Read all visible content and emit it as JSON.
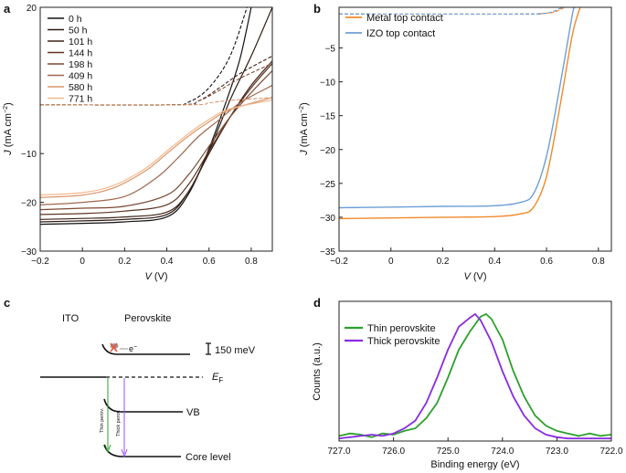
{
  "panels": {
    "a": {
      "label": "a",
      "chart_data": {
        "type": "line",
        "xlabel_var": "V",
        "xlabel_unit": " (V)",
        "ylabel_var": "J",
        "ylabel_unit": " (mA cm",
        "ylabel_sup": "−2",
        "ylabel_close": ")",
        "xlim": [
          -0.2,
          0.9
        ],
        "ylim": [
          -30,
          20
        ],
        "xticks": [
          -0.2,
          0.0,
          0.2,
          0.4,
          0.6,
          0.8
        ],
        "xtick_labels": [
          "−0.2",
          "0",
          "0.2",
          "0.4",
          "0.6",
          "0.8"
        ],
        "yticks": [
          -30,
          -20,
          -10,
          20
        ],
        "ytick_labels": [
          "−30",
          "−20",
          "−10",
          "20"
        ],
        "series": [
          {
            "name": "0 h",
            "color": "#111111",
            "jsc": -24.5,
            "pts": [
              [
                -0.2,
                -24.5
              ],
              [
                0.0,
                -24.3
              ],
              [
                0.2,
                -24.0
              ],
              [
                0.4,
                -23.0
              ],
              [
                0.5,
                -18.5
              ],
              [
                0.6,
                -9.0
              ],
              [
                0.7,
                3.0
              ],
              [
                0.75,
                10.0
              ],
              [
                0.8,
                20.0
              ]
            ]
          },
          {
            "name": "50 h",
            "color": "#2a1a12",
            "jsc": -24.0,
            "pts": [
              [
                -0.2,
                -24.0
              ],
              [
                0.0,
                -23.8
              ],
              [
                0.2,
                -23.5
              ],
              [
                0.4,
                -22.5
              ],
              [
                0.5,
                -18.0
              ],
              [
                0.6,
                -9.5
              ],
              [
                0.7,
                1.0
              ],
              [
                0.8,
                10.0
              ],
              [
                0.9,
                20.0
              ]
            ]
          },
          {
            "name": "101 h",
            "color": "#3f2418",
            "jsc": -23.5,
            "pts": [
              [
                -0.2,
                -23.5
              ],
              [
                0.0,
                -23.3
              ],
              [
                0.2,
                -23.0
              ],
              [
                0.4,
                -22.0
              ],
              [
                0.5,
                -18.0
              ],
              [
                0.6,
                -10.0
              ],
              [
                0.7,
                -2.5
              ],
              [
                0.8,
                4.0
              ],
              [
                0.9,
                9.0
              ]
            ]
          },
          {
            "name": "144 h",
            "color": "#5e3423",
            "jsc": -22.5,
            "pts": [
              [
                -0.2,
                -22.5
              ],
              [
                0.0,
                -22.3
              ],
              [
                0.2,
                -21.8
              ],
              [
                0.4,
                -20.5
              ],
              [
                0.5,
                -16.5
              ],
              [
                0.6,
                -9.5
              ],
              [
                0.7,
                -2.5
              ],
              [
                0.8,
                3.5
              ],
              [
                0.9,
                8.5
              ]
            ]
          },
          {
            "name": "198 h",
            "color": "#7d4a35",
            "jsc": -21.5,
            "pts": [
              [
                -0.2,
                -21.5
              ],
              [
                0.0,
                -21.2
              ],
              [
                0.2,
                -20.8
              ],
              [
                0.4,
                -18.5
              ],
              [
                0.5,
                -14.5
              ],
              [
                0.6,
                -8.5
              ],
              [
                0.7,
                -2.5
              ],
              [
                0.8,
                2.5
              ],
              [
                0.9,
                7.0
              ]
            ]
          },
          {
            "name": "409 h",
            "color": "#a0674e",
            "jsc": -20.5,
            "pts": [
              [
                -0.2,
                -20.5
              ],
              [
                0.0,
                -20.0
              ],
              [
                0.2,
                -18.8
              ],
              [
                0.35,
                -15.0
              ],
              [
                0.45,
                -11.0
              ],
              [
                0.55,
                -6.5
              ],
              [
                0.65,
                -3.0
              ],
              [
                0.75,
                0.5
              ],
              [
                0.9,
                4.0
              ]
            ]
          },
          {
            "name": "580 h",
            "color": "#d9956a",
            "jsc": -19.0,
            "pts": [
              [
                -0.2,
                -19.0
              ],
              [
                0.0,
                -18.5
              ],
              [
                0.15,
                -17.0
              ],
              [
                0.3,
                -13.5
              ],
              [
                0.4,
                -10.0
              ],
              [
                0.5,
                -6.5
              ],
              [
                0.6,
                -3.5
              ],
              [
                0.7,
                -1.0
              ],
              [
                0.9,
                1.5
              ]
            ]
          },
          {
            "name": "771 h",
            "color": "#f2b98e",
            "jsc": -18.5,
            "pts": [
              [
                -0.2,
                -18.5
              ],
              [
                0.0,
                -18.0
              ],
              [
                0.15,
                -16.5
              ],
              [
                0.3,
                -13.0
              ],
              [
                0.4,
                -9.5
              ],
              [
                0.5,
                -6.0
              ],
              [
                0.6,
                -3.0
              ],
              [
                0.7,
                -0.8
              ],
              [
                0.9,
                1.0
              ]
            ]
          }
        ],
        "dark_series": [
          {
            "color": "#111111",
            "pts": [
              [
                -0.2,
                0.0
              ],
              [
                0.4,
                0.0
              ],
              [
                0.5,
                0.5
              ],
              [
                0.6,
                3.5
              ],
              [
                0.7,
                10.0
              ],
              [
                0.78,
                20.0
              ]
            ]
          },
          {
            "color": "#3f2418",
            "pts": [
              [
                -0.2,
                0.0
              ],
              [
                0.45,
                0.0
              ],
              [
                0.55,
                0.8
              ],
              [
                0.65,
                3.5
              ],
              [
                0.75,
                6.5
              ],
              [
                0.9,
                10.0
              ]
            ]
          },
          {
            "color": "#7d4a35",
            "pts": [
              [
                -0.2,
                0.0
              ],
              [
                0.45,
                0.0
              ],
              [
                0.55,
                0.8
              ],
              [
                0.65,
                3.0
              ],
              [
                0.75,
                5.5
              ],
              [
                0.9,
                8.5
              ]
            ]
          },
          {
            "color": "#d9956a",
            "pts": [
              [
                -0.2,
                0.0
              ],
              [
                0.5,
                0.0
              ],
              [
                0.6,
                0.4
              ],
              [
                0.7,
                0.9
              ],
              [
                0.9,
                1.5
              ]
            ]
          }
        ]
      }
    },
    "b": {
      "label": "b",
      "chart_data": {
        "type": "line",
        "xlabel_var": "V",
        "xlabel_unit": " (V)",
        "ylabel_var": "J",
        "ylabel_unit": " (mA cm",
        "ylabel_sup": "−2",
        "ylabel_close": ")",
        "xlim": [
          -0.2,
          0.85
        ],
        "ylim": [
          -35,
          1
        ],
        "xticks": [
          -0.2,
          0.0,
          0.2,
          0.4,
          0.6,
          0.8
        ],
        "xtick_labels": [
          "−0.2",
          "0",
          "0.2",
          "0.4",
          "0.6",
          "0.8"
        ],
        "yticks": [
          -35,
          -30,
          -25,
          -20,
          -15,
          -10,
          -5
        ],
        "ytick_labels": [
          "−35",
          "−30",
          "−25",
          "−20",
          "−15",
          "−10",
          "−5"
        ],
        "series": [
          {
            "name": "Metal top contact",
            "color": "#f08a2c",
            "pts": [
              [
                -0.2,
                -30.2
              ],
              [
                0.0,
                -30.1
              ],
              [
                0.2,
                -30.0
              ],
              [
                0.4,
                -29.9
              ],
              [
                0.5,
                -29.5
              ],
              [
                0.55,
                -28.5
              ],
              [
                0.6,
                -24.0
              ],
              [
                0.65,
                -14.0
              ],
              [
                0.7,
                -3.0
              ],
              [
                0.73,
                1.0
              ]
            ]
          },
          {
            "name": "IZO top contact",
            "color": "#6d9fd6",
            "pts": [
              [
                -0.2,
                -28.6
              ],
              [
                0.0,
                -28.5
              ],
              [
                0.2,
                -28.4
              ],
              [
                0.4,
                -28.3
              ],
              [
                0.5,
                -27.8
              ],
              [
                0.55,
                -26.5
              ],
              [
                0.6,
                -21.0
              ],
              [
                0.65,
                -11.0
              ],
              [
                0.7,
                0.0
              ],
              [
                0.71,
                1.0
              ]
            ]
          }
        ],
        "dark_series": [
          {
            "color": "#f08a2c",
            "pts": [
              [
                -0.2,
                0.0
              ],
              [
                0.5,
                0.0
              ],
              [
                0.58,
                0.05
              ],
              [
                0.63,
                0.3
              ],
              [
                0.67,
                1.0
              ]
            ]
          },
          {
            "color": "#6d9fd6",
            "pts": [
              [
                -0.2,
                0.0
              ],
              [
                0.5,
                0.0
              ],
              [
                0.57,
                0.05
              ],
              [
                0.62,
                0.3
              ],
              [
                0.66,
                1.0
              ]
            ]
          }
        ]
      }
    },
    "c": {
      "label": "c",
      "ito_label": "ITO",
      "perovskite_label": "Perovskite",
      "electron_label": "e",
      "electron_sup": "−",
      "barrier_label": "150 meV",
      "ef_label": "E",
      "ef_sub": "F",
      "vb_label": "VB",
      "core_label": "Core level",
      "thin_arrow_label": "Thin perov.",
      "thick_arrow_label": "Thick perov.",
      "colors": {
        "thin": "#2ca02c",
        "thick": "#9b4dff",
        "cross": "#e8543a"
      }
    },
    "d": {
      "label": "d",
      "chart_data": {
        "type": "line",
        "xlabel": "Binding energy (eV)",
        "ylabel": "Counts (a.u.)",
        "xlim": [
          727.0,
          722.0
        ],
        "ylim": [
          0,
          1.1
        ],
        "xticks": [
          727.0,
          726.0,
          725.0,
          724.0,
          723.0,
          722.0
        ],
        "xtick_labels": [
          "727.0",
          "726.0",
          "725.0",
          "724.0",
          "723.0",
          "722.0"
        ],
        "series": [
          {
            "name": "Thin perovskite",
            "color": "#2ca02c",
            "pts": [
              [
                727.0,
                0.04
              ],
              [
                726.8,
                0.06
              ],
              [
                726.6,
                0.05
              ],
              [
                726.4,
                0.03
              ],
              [
                726.2,
                0.06
              ],
              [
                726.0,
                0.05
              ],
              [
                725.8,
                0.08
              ],
              [
                725.6,
                0.1
              ],
              [
                725.4,
                0.18
              ],
              [
                725.2,
                0.3
              ],
              [
                725.0,
                0.5
              ],
              [
                724.8,
                0.72
              ],
              [
                724.6,
                0.86
              ],
              [
                724.4,
                0.98
              ],
              [
                724.3,
                1.0
              ],
              [
                724.2,
                0.96
              ],
              [
                724.0,
                0.8
              ],
              [
                723.8,
                0.55
              ],
              [
                723.6,
                0.35
              ],
              [
                723.4,
                0.2
              ],
              [
                723.2,
                0.12
              ],
              [
                723.0,
                0.08
              ],
              [
                722.8,
                0.06
              ],
              [
                722.6,
                0.04
              ],
              [
                722.4,
                0.06
              ],
              [
                722.2,
                0.04
              ],
              [
                722.0,
                0.05
              ]
            ]
          },
          {
            "name": "Thick perovskite",
            "color": "#8a2be2",
            "pts": [
              [
                727.0,
                0.02
              ],
              [
                726.8,
                0.03
              ],
              [
                726.6,
                0.04
              ],
              [
                726.4,
                0.05
              ],
              [
                726.2,
                0.04
              ],
              [
                726.0,
                0.06
              ],
              [
                725.8,
                0.1
              ],
              [
                725.6,
                0.16
              ],
              [
                725.4,
                0.3
              ],
              [
                725.2,
                0.5
              ],
              [
                725.0,
                0.72
              ],
              [
                724.8,
                0.9
              ],
              [
                724.6,
                0.97
              ],
              [
                724.5,
                1.0
              ],
              [
                724.4,
                0.95
              ],
              [
                724.2,
                0.78
              ],
              [
                724.0,
                0.55
              ],
              [
                723.8,
                0.35
              ],
              [
                723.6,
                0.2
              ],
              [
                723.4,
                0.1
              ],
              [
                723.2,
                0.05
              ],
              [
                723.0,
                0.03
              ],
              [
                722.8,
                0.02
              ],
              [
                722.6,
                0.02
              ],
              [
                722.4,
                0.02
              ],
              [
                722.2,
                0.02
              ],
              [
                722.0,
                0.02
              ]
            ]
          }
        ]
      }
    }
  }
}
